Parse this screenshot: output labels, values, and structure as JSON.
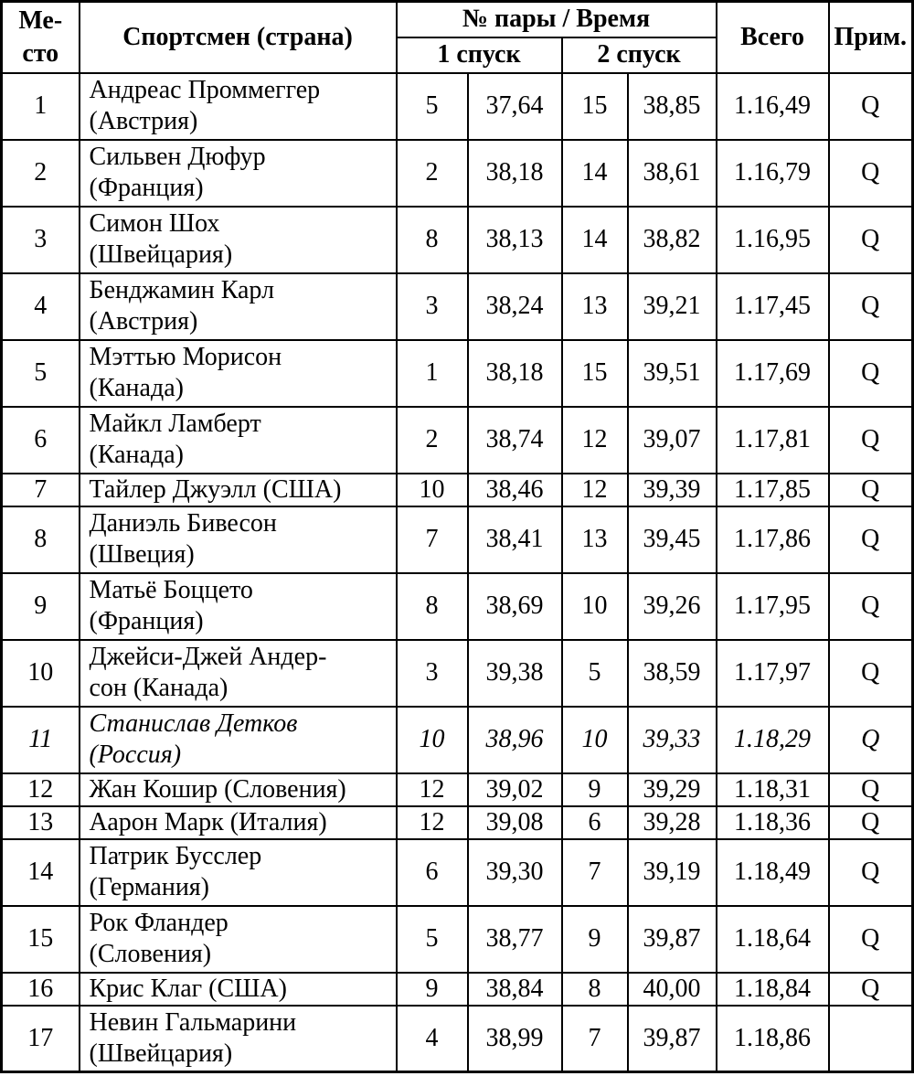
{
  "table": {
    "headers": {
      "place": "Ме-\nсто",
      "athlete": "Спортсмен (страна)",
      "pair_time": "№ пары / Время",
      "run1": "1 спуск",
      "run2": "2 спуск",
      "total": "Всего",
      "note": "Прим."
    },
    "rows": [
      {
        "place": "1",
        "athlete": "Андреас Проммеггер\n(Австрия)",
        "run1_pair": "5",
        "run1_time": "37,64",
        "run2_pair": "15",
        "run2_time": "38,85",
        "total": "1.16,49",
        "note": "Q",
        "italic": false
      },
      {
        "place": "2",
        "athlete": "Сильвен Дюфур\n(Франция)",
        "run1_pair": "2",
        "run1_time": "38,18",
        "run2_pair": "14",
        "run2_time": "38,61",
        "total": "1.16,79",
        "note": "Q",
        "italic": false
      },
      {
        "place": "3",
        "athlete": "Симон Шох\n(Швейцария)",
        "run1_pair": "8",
        "run1_time": "38,13",
        "run2_pair": "14",
        "run2_time": "38,82",
        "total": "1.16,95",
        "note": "Q",
        "italic": false
      },
      {
        "place": "4",
        "athlete": "Бенджамин Карл\n(Австрия)",
        "run1_pair": "3",
        "run1_time": "38,24",
        "run2_pair": "13",
        "run2_time": "39,21",
        "total": "1.17,45",
        "note": "Q",
        "italic": false
      },
      {
        "place": "5",
        "athlete": "Мэттью Морисон\n(Канада)",
        "run1_pair": "1",
        "run1_time": "38,18",
        "run2_pair": "15",
        "run2_time": "39,51",
        "total": "1.17,69",
        "note": "Q",
        "italic": false
      },
      {
        "place": "6",
        "athlete": "Майкл Ламберт\n(Канада)",
        "run1_pair": "2",
        "run1_time": "38,74",
        "run2_pair": "12",
        "run2_time": "39,07",
        "total": "1.17,81",
        "note": "Q",
        "italic": false
      },
      {
        "place": "7",
        "athlete": "Тайлер Джуэлл (США)",
        "run1_pair": "10",
        "run1_time": "38,46",
        "run2_pair": "12",
        "run2_time": "39,39",
        "total": "1.17,85",
        "note": "Q",
        "italic": false
      },
      {
        "place": "8",
        "athlete": "Даниэль Бивесон\n(Швеция)",
        "run1_pair": "7",
        "run1_time": "38,41",
        "run2_pair": "13",
        "run2_time": "39,45",
        "total": "1.17,86",
        "note": "Q",
        "italic": false
      },
      {
        "place": "9",
        "athlete": "Матьё Боццето\n(Франция)",
        "run1_pair": "8",
        "run1_time": "38,69",
        "run2_pair": "10",
        "run2_time": "39,26",
        "total": "1.17,95",
        "note": "Q",
        "italic": false
      },
      {
        "place": "10",
        "athlete": "Джейси-Джей Андер-\nсон (Канада)",
        "run1_pair": "3",
        "run1_time": "39,38",
        "run2_pair": "5",
        "run2_time": "38,59",
        "total": "1.17,97",
        "note": "Q",
        "italic": false
      },
      {
        "place": "11",
        "athlete": "Станислав Детков\n(Россия)",
        "run1_pair": "10",
        "run1_time": "38,96",
        "run2_pair": "10",
        "run2_time": "39,33",
        "total": "1.18,29",
        "note": "Q",
        "italic": true
      },
      {
        "place": "12",
        "athlete": "Жан Кошир (Словения)",
        "run1_pair": "12",
        "run1_time": "39,02",
        "run2_pair": "9",
        "run2_time": "39,29",
        "total": "1.18,31",
        "note": "Q",
        "italic": false
      },
      {
        "place": "13",
        "athlete": "Аарон Марк (Италия)",
        "run1_pair": "12",
        "run1_time": "39,08",
        "run2_pair": "6",
        "run2_time": "39,28",
        "total": "1.18,36",
        "note": "Q",
        "italic": false
      },
      {
        "place": "14",
        "athlete": "Патрик Бусслер\n(Германия)",
        "run1_pair": "6",
        "run1_time": "39,30",
        "run2_pair": "7",
        "run2_time": "39,19",
        "total": "1.18,49",
        "note": "Q",
        "italic": false
      },
      {
        "place": "15",
        "athlete": "Рок Фландер\n(Словения)",
        "run1_pair": "5",
        "run1_time": "38,77",
        "run2_pair": "9",
        "run2_time": "39,87",
        "total": "1.18,64",
        "note": "Q",
        "italic": false
      },
      {
        "place": "16",
        "athlete": "Крис Клаг (США)",
        "run1_pair": "9",
        "run1_time": "38,84",
        "run2_pair": "8",
        "run2_time": "40,00",
        "total": "1.18,84",
        "note": "Q",
        "italic": false
      },
      {
        "place": "17",
        "athlete": "Невин Гальмарини\n(Швейцария)",
        "run1_pair": "4",
        "run1_time": "38,99",
        "run2_pair": "7",
        "run2_time": "39,87",
        "total": "1.18,86",
        "note": "",
        "italic": false
      }
    ]
  }
}
